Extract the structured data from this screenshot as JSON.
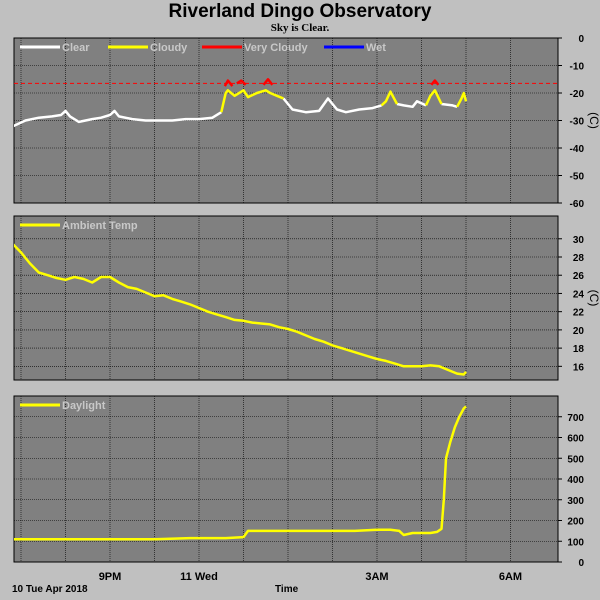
{
  "header": {
    "title": "Riverland Dingo Observatory",
    "subtitle": "Sky is Clear."
  },
  "footer": {
    "date_label": "10 Tue Apr 2018",
    "x_axis_label": "Time"
  },
  "colors": {
    "background": "#c0c0c0",
    "plot_background": "#808080",
    "grid": "#000000",
    "clear": "#ffffff",
    "cloudy": "#ffff00",
    "very_cloudy": "#ff0000",
    "wet": "#0000ff",
    "threshold_line": "#ff0000"
  },
  "chart_data": [
    {
      "type": "line",
      "id": "sky",
      "ylabel": "(C)",
      "ylim": [
        -60,
        0
      ],
      "yticks": [
        0,
        -10,
        -20,
        -30,
        -40,
        -50,
        -60
      ],
      "xlim": [
        18.0,
        29.0
      ],
      "threshold": -16.5,
      "legend": [
        {
          "name": "Clear",
          "color": "#ffffff"
        },
        {
          "name": "Cloudy",
          "color": "#ffff00"
        },
        {
          "name": "Very Cloudy",
          "color": "#ff0000"
        },
        {
          "name": "Wet",
          "color": "#0000ff"
        }
      ],
      "series": [
        {
          "name": "Clear",
          "color": "#ffffff",
          "segments": [
            [
              [
                18.1,
                -34
              ],
              [
                18.4,
                -34
              ],
              [
                18.7,
                -33
              ],
              [
                18.9,
                -31.5
              ],
              [
                19.1,
                -30
              ],
              [
                19.4,
                -29
              ],
              [
                19.7,
                -28.5
              ],
              [
                19.9,
                -28
              ],
              [
                20.0,
                -26.5
              ],
              [
                20.1,
                -28.5
              ],
              [
                20.3,
                -30.5
              ],
              [
                20.6,
                -29.5
              ],
              [
                20.8,
                -29
              ],
              [
                21.0,
                -28
              ],
              [
                21.1,
                -26.5
              ],
              [
                21.2,
                -28.5
              ],
              [
                21.5,
                -29.5
              ],
              [
                21.8,
                -30
              ],
              [
                22.1,
                -30
              ],
              [
                22.4,
                -30
              ],
              [
                22.7,
                -29.5
              ],
              [
                23.0,
                -29.5
              ],
              [
                23.3,
                -29
              ],
              [
                23.5,
                -27
              ]
            ],
            [
              [
                24.9,
                -22
              ],
              [
                25.1,
                -26
              ],
              [
                25.4,
                -27
              ],
              [
                25.7,
                -26.5
              ],
              [
                25.9,
                -22
              ],
              [
                26.1,
                -26
              ],
              [
                26.3,
                -27
              ],
              [
                26.6,
                -26
              ],
              [
                26.9,
                -25.5
              ],
              [
                27.1,
                -24.5
              ]
            ],
            [
              [
                27.45,
                -24
              ],
              [
                27.6,
                -24.5
              ],
              [
                27.8,
                -25
              ],
              [
                27.9,
                -23
              ],
              [
                28.1,
                -24.5
              ]
            ],
            [
              [
                28.45,
                -24
              ],
              [
                28.7,
                -24.5
              ],
              [
                28.8,
                -25
              ]
            ]
          ]
        },
        {
          "name": "Cloudy",
          "color": "#ffff00",
          "segments": [
            [
              [
                23.5,
                -27
              ],
              [
                23.6,
                -20
              ],
              [
                23.65,
                -19
              ],
              [
                23.8,
                -21
              ],
              [
                24.0,
                -19
              ],
              [
                24.1,
                -21.5
              ],
              [
                24.3,
                -20
              ],
              [
                24.5,
                -19
              ],
              [
                24.6,
                -20
              ],
              [
                24.75,
                -21
              ],
              [
                24.9,
                -22
              ]
            ],
            [
              [
                27.1,
                -24.5
              ],
              [
                27.2,
                -23
              ],
              [
                27.3,
                -19.5
              ],
              [
                27.45,
                -24
              ]
            ],
            [
              [
                28.1,
                -24.5
              ],
              [
                28.2,
                -21
              ],
              [
                28.3,
                -19
              ],
              [
                28.45,
                -24
              ]
            ],
            [
              [
                28.8,
                -25
              ],
              [
                28.9,
                -22
              ],
              [
                28.95,
                -20
              ],
              [
                29.0,
                -23
              ]
            ]
          ]
        },
        {
          "name": "Very Cloudy",
          "color": "#ff0000",
          "segments": [
            [
              [
                23.58,
                -17.5
              ],
              [
                23.65,
                -15.5
              ],
              [
                23.75,
                -17.5
              ]
            ],
            [
              [
                23.85,
                -16.5
              ],
              [
                23.95,
                -15.5
              ],
              [
                24.05,
                -17
              ]
            ],
            [
              [
                24.45,
                -17
              ],
              [
                24.55,
                -15
              ],
              [
                24.65,
                -17
              ]
            ],
            [
              [
                28.22,
                -17
              ],
              [
                28.3,
                -15.5
              ],
              [
                28.38,
                -17
              ]
            ]
          ]
        },
        {
          "name": "Wet",
          "color": "#0000ff",
          "segments": []
        }
      ]
    },
    {
      "type": "line",
      "id": "ambient",
      "ylabel": "(C)",
      "ylim": [
        14.5,
        32.5
      ],
      "yticks": [
        30,
        28,
        26,
        24,
        22,
        20,
        18,
        16
      ],
      "xlim": [
        18.0,
        29.0
      ],
      "series": [
        {
          "name": "Ambient Temp",
          "color": "#ffff00",
          "points": [
            [
              18.1,
              30.3
            ],
            [
              18.25,
              31
            ],
            [
              18.4,
              31
            ],
            [
              18.6,
              30.4
            ],
            [
              18.8,
              29.5
            ],
            [
              19.0,
              28.5
            ],
            [
              19.2,
              27.3
            ],
            [
              19.4,
              26.3
            ],
            [
              19.6,
              26.0
            ],
            [
              19.8,
              25.7
            ],
            [
              20.0,
              25.5
            ],
            [
              20.2,
              25.8
            ],
            [
              20.4,
              25.6
            ],
            [
              20.6,
              25.2
            ],
            [
              20.8,
              25.8
            ],
            [
              21.0,
              25.8
            ],
            [
              21.2,
              25.2
            ],
            [
              21.4,
              24.7
            ],
            [
              21.6,
              24.5
            ],
            [
              21.8,
              24.1
            ],
            [
              22.0,
              23.7
            ],
            [
              22.2,
              23.8
            ],
            [
              22.4,
              23.4
            ],
            [
              22.6,
              23.1
            ],
            [
              22.8,
              22.8
            ],
            [
              23.0,
              22.4
            ],
            [
              23.2,
              22.0
            ],
            [
              23.4,
              21.7
            ],
            [
              23.6,
              21.4
            ],
            [
              23.8,
              21.1
            ],
            [
              24.0,
              21.0
            ],
            [
              24.2,
              20.8
            ],
            [
              24.4,
              20.7
            ],
            [
              24.6,
              20.6
            ],
            [
              24.8,
              20.3
            ],
            [
              25.0,
              20.1
            ],
            [
              25.2,
              19.8
            ],
            [
              25.4,
              19.4
            ],
            [
              25.6,
              19.0
            ],
            [
              25.8,
              18.7
            ],
            [
              26.0,
              18.3
            ],
            [
              26.2,
              18.0
            ],
            [
              26.4,
              17.7
            ],
            [
              26.6,
              17.4
            ],
            [
              26.8,
              17.1
            ],
            [
              27.0,
              16.8
            ],
            [
              27.2,
              16.6
            ],
            [
              27.4,
              16.3
            ],
            [
              27.6,
              16.0
            ],
            [
              27.8,
              16.0
            ],
            [
              28.0,
              16.0
            ],
            [
              28.2,
              16.1
            ],
            [
              28.4,
              16.0
            ],
            [
              28.6,
              15.6
            ],
            [
              28.8,
              15.2
            ],
            [
              28.95,
              15.1
            ],
            [
              29.0,
              15.4
            ]
          ]
        }
      ]
    },
    {
      "type": "line",
      "id": "daylight",
      "ylim": [
        0,
        800
      ],
      "yticks": [
        700,
        600,
        500,
        400,
        300,
        200,
        100,
        0
      ],
      "xlim": [
        18.0,
        29.0
      ],
      "xticks": [
        {
          "label": "9PM",
          "value": 21
        },
        {
          "label": "11 Wed",
          "value": 23
        },
        {
          "label": "3AM",
          "value": 27
        },
        {
          "label": "6AM",
          "value": 30
        }
      ],
      "series": [
        {
          "name": "Daylight",
          "color": "#ffff00",
          "points": [
            [
              18.1,
              110
            ],
            [
              19.0,
              110
            ],
            [
              20.0,
              110
            ],
            [
              21.0,
              110
            ],
            [
              22.0,
              110
            ],
            [
              22.8,
              115
            ],
            [
              23.6,
              115
            ],
            [
              24.0,
              120
            ],
            [
              24.1,
              150
            ],
            [
              24.5,
              150
            ],
            [
              25.0,
              150
            ],
            [
              25.5,
              150
            ],
            [
              26.0,
              150
            ],
            [
              26.5,
              150
            ],
            [
              27.0,
              155
            ],
            [
              27.3,
              155
            ],
            [
              27.5,
              150
            ],
            [
              27.6,
              130
            ],
            [
              27.8,
              140
            ],
            [
              28.0,
              140
            ],
            [
              28.2,
              140
            ],
            [
              28.35,
              145
            ],
            [
              28.45,
              160
            ],
            [
              28.5,
              300
            ],
            [
              28.55,
              500
            ],
            [
              28.65,
              580
            ],
            [
              28.75,
              650
            ],
            [
              28.85,
              700
            ],
            [
              28.95,
              740
            ],
            [
              29.0,
              750
            ]
          ]
        }
      ]
    }
  ]
}
